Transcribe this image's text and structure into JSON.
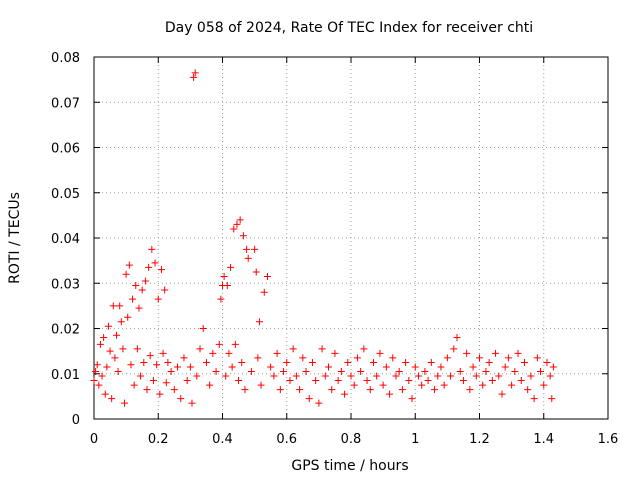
{
  "chart_data": {
    "type": "scatter",
    "title": "Day 058 of 2024, Rate Of TEC Index for receiver chti",
    "xlabel": "GPS time / hours",
    "ylabel": "ROTI / TECUs",
    "xlim": [
      0,
      1.6
    ],
    "ylim": [
      0,
      0.08
    ],
    "grid": true,
    "marker": "plus",
    "color": "#ff0000",
    "x_ticks": [
      "0",
      "0.2",
      "0.4",
      "0.6",
      "0.8",
      "1",
      "1.2",
      "1.4",
      "1.6"
    ],
    "y_ticks": [
      "0",
      "0.01",
      "0.02",
      "0.03",
      "0.04",
      "0.05",
      "0.06",
      "0.07",
      "0.08"
    ],
    "series": [
      {
        "name": "ROTI",
        "points": [
          [
            0.0,
            0.0085
          ],
          [
            0.005,
            0.0105
          ],
          [
            0.01,
            0.012
          ],
          [
            0.015,
            0.0075
          ],
          [
            0.02,
            0.0165
          ],
          [
            0.025,
            0.0095
          ],
          [
            0.03,
            0.018
          ],
          [
            0.035,
            0.0055
          ],
          [
            0.04,
            0.0115
          ],
          [
            0.045,
            0.0205
          ],
          [
            0.05,
            0.015
          ],
          [
            0.055,
            0.0045
          ],
          [
            0.06,
            0.025
          ],
          [
            0.065,
            0.0135
          ],
          [
            0.07,
            0.0185
          ],
          [
            0.075,
            0.0105
          ],
          [
            0.08,
            0.025
          ],
          [
            0.085,
            0.0215
          ],
          [
            0.09,
            0.0155
          ],
          [
            0.095,
            0.0035
          ],
          [
            0.1,
            0.032
          ],
          [
            0.105,
            0.0225
          ],
          [
            0.11,
            0.034
          ],
          [
            0.115,
            0.012
          ],
          [
            0.12,
            0.0265
          ],
          [
            0.125,
            0.0075
          ],
          [
            0.13,
            0.0295
          ],
          [
            0.135,
            0.0155
          ],
          [
            0.14,
            0.0245
          ],
          [
            0.145,
            0.0095
          ],
          [
            0.15,
            0.0285
          ],
          [
            0.155,
            0.0125
          ],
          [
            0.16,
            0.0305
          ],
          [
            0.165,
            0.0065
          ],
          [
            0.17,
            0.0335
          ],
          [
            0.175,
            0.014
          ],
          [
            0.18,
            0.0375
          ],
          [
            0.185,
            0.0085
          ],
          [
            0.19,
            0.0345
          ],
          [
            0.195,
            0.012
          ],
          [
            0.2,
            0.0265
          ],
          [
            0.205,
            0.0055
          ],
          [
            0.21,
            0.033
          ],
          [
            0.215,
            0.0145
          ],
          [
            0.22,
            0.0285
          ],
          [
            0.225,
            0.008
          ],
          [
            0.23,
            0.0125
          ],
          [
            0.24,
            0.0105
          ],
          [
            0.25,
            0.0065
          ],
          [
            0.26,
            0.0115
          ],
          [
            0.27,
            0.0045
          ],
          [
            0.28,
            0.0135
          ],
          [
            0.29,
            0.0085
          ],
          [
            0.3,
            0.0115
          ],
          [
            0.305,
            0.0035
          ],
          [
            0.31,
            0.0755
          ],
          [
            0.315,
            0.0765
          ],
          [
            0.32,
            0.0095
          ],
          [
            0.33,
            0.0155
          ],
          [
            0.34,
            0.02
          ],
          [
            0.35,
            0.0125
          ],
          [
            0.36,
            0.0075
          ],
          [
            0.37,
            0.0145
          ],
          [
            0.38,
            0.0105
          ],
          [
            0.39,
            0.0165
          ],
          [
            0.395,
            0.0265
          ],
          [
            0.4,
            0.0295
          ],
          [
            0.405,
            0.0315
          ],
          [
            0.41,
            0.0095
          ],
          [
            0.415,
            0.0295
          ],
          [
            0.42,
            0.0145
          ],
          [
            0.425,
            0.0335
          ],
          [
            0.43,
            0.0115
          ],
          [
            0.435,
            0.042
          ],
          [
            0.44,
            0.0165
          ],
          [
            0.445,
            0.043
          ],
          [
            0.45,
            0.0085
          ],
          [
            0.455,
            0.044
          ],
          [
            0.46,
            0.0125
          ],
          [
            0.465,
            0.0405
          ],
          [
            0.47,
            0.0065
          ],
          [
            0.475,
            0.0375
          ],
          [
            0.48,
            0.0355
          ],
          [
            0.49,
            0.0105
          ],
          [
            0.5,
            0.0375
          ],
          [
            0.505,
            0.0325
          ],
          [
            0.51,
            0.0135
          ],
          [
            0.515,
            0.0215
          ],
          [
            0.52,
            0.0075
          ],
          [
            0.53,
            0.028
          ],
          [
            0.54,
            0.0315
          ],
          [
            0.55,
            0.0115
          ],
          [
            0.56,
            0.0095
          ],
          [
            0.57,
            0.0145
          ],
          [
            0.58,
            0.0065
          ],
          [
            0.59,
            0.0105
          ],
          [
            0.6,
            0.0125
          ],
          [
            0.61,
            0.0085
          ],
          [
            0.62,
            0.0155
          ],
          [
            0.63,
            0.0095
          ],
          [
            0.64,
            0.0065
          ],
          [
            0.65,
            0.0135
          ],
          [
            0.66,
            0.0105
          ],
          [
            0.67,
            0.0045
          ],
          [
            0.68,
            0.0125
          ],
          [
            0.69,
            0.0085
          ],
          [
            0.7,
            0.0035
          ],
          [
            0.71,
            0.0155
          ],
          [
            0.72,
            0.0095
          ],
          [
            0.73,
            0.0115
          ],
          [
            0.74,
            0.0065
          ],
          [
            0.75,
            0.0145
          ],
          [
            0.76,
            0.0085
          ],
          [
            0.77,
            0.0105
          ],
          [
            0.78,
            0.0055
          ],
          [
            0.79,
            0.0125
          ],
          [
            0.8,
            0.0095
          ],
          [
            0.81,
            0.0075
          ],
          [
            0.82,
            0.0135
          ],
          [
            0.83,
            0.0105
          ],
          [
            0.84,
            0.0155
          ],
          [
            0.85,
            0.0085
          ],
          [
            0.86,
            0.0065
          ],
          [
            0.87,
            0.0125
          ],
          [
            0.88,
            0.0095
          ],
          [
            0.89,
            0.0145
          ],
          [
            0.9,
            0.0075
          ],
          [
            0.91,
            0.0115
          ],
          [
            0.92,
            0.0055
          ],
          [
            0.93,
            0.0135
          ],
          [
            0.94,
            0.0095
          ],
          [
            0.95,
            0.0105
          ],
          [
            0.96,
            0.0065
          ],
          [
            0.97,
            0.0125
          ],
          [
            0.98,
            0.0085
          ],
          [
            0.99,
            0.0045
          ],
          [
            1.0,
            0.0115
          ],
          [
            1.01,
            0.0095
          ],
          [
            1.02,
            0.0075
          ],
          [
            1.03,
            0.0105
          ],
          [
            1.04,
            0.0085
          ],
          [
            1.05,
            0.0125
          ],
          [
            1.06,
            0.0065
          ],
          [
            1.07,
            0.0095
          ],
          [
            1.08,
            0.0115
          ],
          [
            1.09,
            0.0075
          ],
          [
            1.1,
            0.0135
          ],
          [
            1.11,
            0.0095
          ],
          [
            1.12,
            0.0155
          ],
          [
            1.13,
            0.018
          ],
          [
            1.14,
            0.0105
          ],
          [
            1.15,
            0.0085
          ],
          [
            1.16,
            0.0145
          ],
          [
            1.17,
            0.0065
          ],
          [
            1.18,
            0.0115
          ],
          [
            1.19,
            0.0095
          ],
          [
            1.2,
            0.0135
          ],
          [
            1.21,
            0.0075
          ],
          [
            1.22,
            0.0105
          ],
          [
            1.23,
            0.0125
          ],
          [
            1.24,
            0.0085
          ],
          [
            1.25,
            0.0145
          ],
          [
            1.26,
            0.0095
          ],
          [
            1.27,
            0.0055
          ],
          [
            1.28,
            0.0115
          ],
          [
            1.29,
            0.0135
          ],
          [
            1.3,
            0.0075
          ],
          [
            1.31,
            0.0105
          ],
          [
            1.32,
            0.0145
          ],
          [
            1.33,
            0.0085
          ],
          [
            1.34,
            0.0125
          ],
          [
            1.35,
            0.0065
          ],
          [
            1.36,
            0.0095
          ],
          [
            1.37,
            0.0045
          ],
          [
            1.38,
            0.0135
          ],
          [
            1.39,
            0.0105
          ],
          [
            1.4,
            0.0075
          ],
          [
            1.41,
            0.0125
          ],
          [
            1.42,
            0.0095
          ],
          [
            1.425,
            0.0045
          ],
          [
            1.43,
            0.0115
          ]
        ]
      }
    ]
  }
}
